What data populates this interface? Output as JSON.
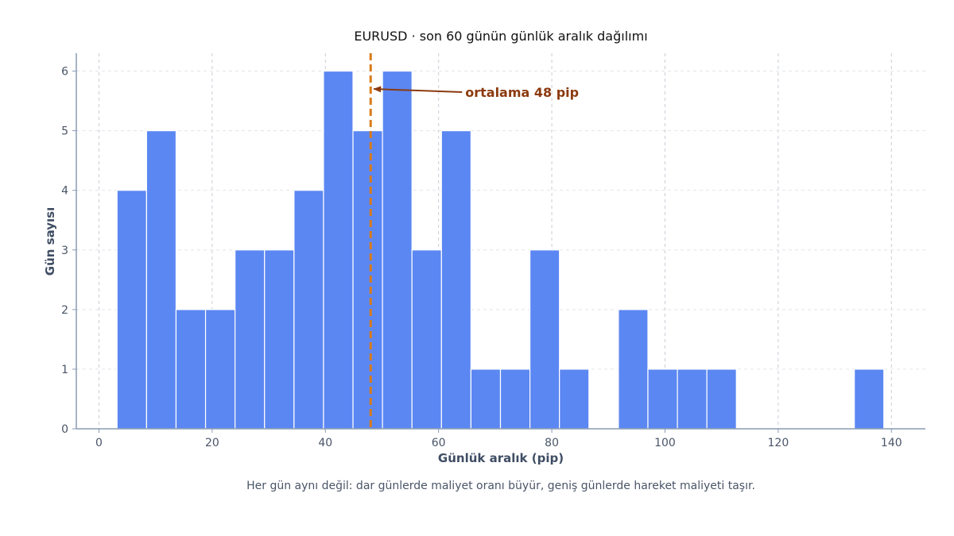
{
  "chart_data": {
    "type": "bar",
    "title": "EURUSD · son 60 günün günlük aralık dağılımı",
    "xlabel": "Günlük aralık (pip)",
    "ylabel": "Gün sayısı",
    "caption": "Her gün aynı değil: dar günlerde maliyet oranı büyür, geniş günlerde hareket maliyeti taşır.",
    "xlim": [
      -4,
      146
    ],
    "ylim": [
      0,
      6.3
    ],
    "x_ticks": [
      0,
      20,
      40,
      60,
      80,
      100,
      120,
      140
    ],
    "y_ticks": [
      0,
      1,
      2,
      3,
      4,
      5,
      6
    ],
    "bin_start": 3.2,
    "bin_width": 5.21,
    "counts": [
      4,
      5,
      2,
      2,
      3,
      3,
      4,
      6,
      5,
      6,
      3,
      5,
      1,
      1,
      3,
      1,
      0,
      2,
      1,
      1,
      1,
      0,
      0,
      0,
      0,
      1
    ],
    "mean": 48,
    "mean_label": "ortalama 48 pip",
    "grid": true,
    "colors": {
      "bar": "#5b87f2",
      "bar_edge": "#ffffff",
      "mean_line": "#d97b1a",
      "annotation": "#8b3a0e",
      "axis": "#8a9bb4"
    }
  }
}
